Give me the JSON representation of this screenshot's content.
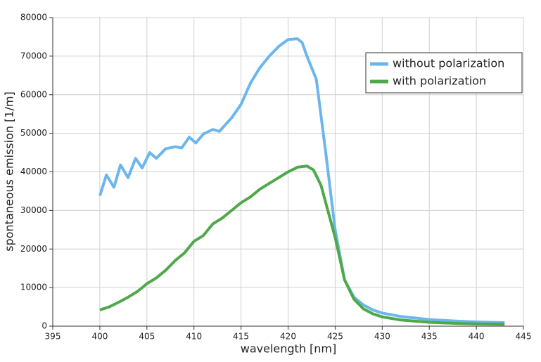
{
  "chart_data": {
    "type": "line",
    "xlabel": "wavelength [nm]",
    "ylabel": "spontaneous emission [1/m]",
    "xlim": [
      395,
      445
    ],
    "xticks": [
      395,
      400,
      405,
      410,
      415,
      420,
      425,
      430,
      435,
      440,
      445
    ],
    "ylim": [
      0,
      80000
    ],
    "yticks": [
      0,
      10000,
      20000,
      30000,
      40000,
      50000,
      60000,
      70000,
      80000
    ],
    "grid": true,
    "legend": "upper right",
    "series": [
      {
        "name": "without polarization",
        "color": "#6cb6ee",
        "x": [
          400,
          400.7,
          401.5,
          402.2,
          403,
          403.8,
          404.5,
          405.3,
          406,
          407,
          408,
          408.7,
          409.5,
          410.2,
          411,
          412,
          412.7,
          414,
          415,
          416,
          417,
          418,
          419,
          420,
          421,
          421.5,
          422,
          423,
          424,
          425,
          426,
          427,
          428,
          429,
          430,
          432,
          435,
          438,
          440,
          443
        ],
        "values": [
          33800,
          39200,
          36000,
          41800,
          38500,
          43500,
          41000,
          45000,
          43500,
          46000,
          46500,
          46200,
          49000,
          47500,
          49800,
          51000,
          50500,
          54000,
          57500,
          63000,
          67000,
          70000,
          72500,
          74300,
          74500,
          73500,
          70000,
          64000,
          45000,
          25000,
          12000,
          7500,
          5500,
          4200,
          3400,
          2500,
          1700,
          1300,
          1100,
          900
        ]
      },
      {
        "name": "with polarization",
        "color": "#4fa84a",
        "x": [
          400,
          401,
          402,
          403,
          404,
          405,
          406,
          407,
          408,
          409,
          410,
          411,
          412,
          413,
          414,
          415,
          416,
          417,
          418,
          419,
          420,
          421,
          422,
          422.7,
          423.5,
          424,
          425,
          426,
          427,
          428,
          429,
          430,
          432,
          435,
          438,
          440,
          443
        ],
        "values": [
          4200,
          5000,
          6200,
          7500,
          9000,
          11000,
          12500,
          14500,
          17000,
          19000,
          22000,
          23500,
          26500,
          28000,
          30000,
          32000,
          33500,
          35500,
          37000,
          38500,
          40000,
          41200,
          41500,
          40500,
          36500,
          32000,
          23000,
          12000,
          7000,
          4500,
          3200,
          2400,
          1600,
          1000,
          700,
          600,
          500
        ]
      }
    ]
  }
}
